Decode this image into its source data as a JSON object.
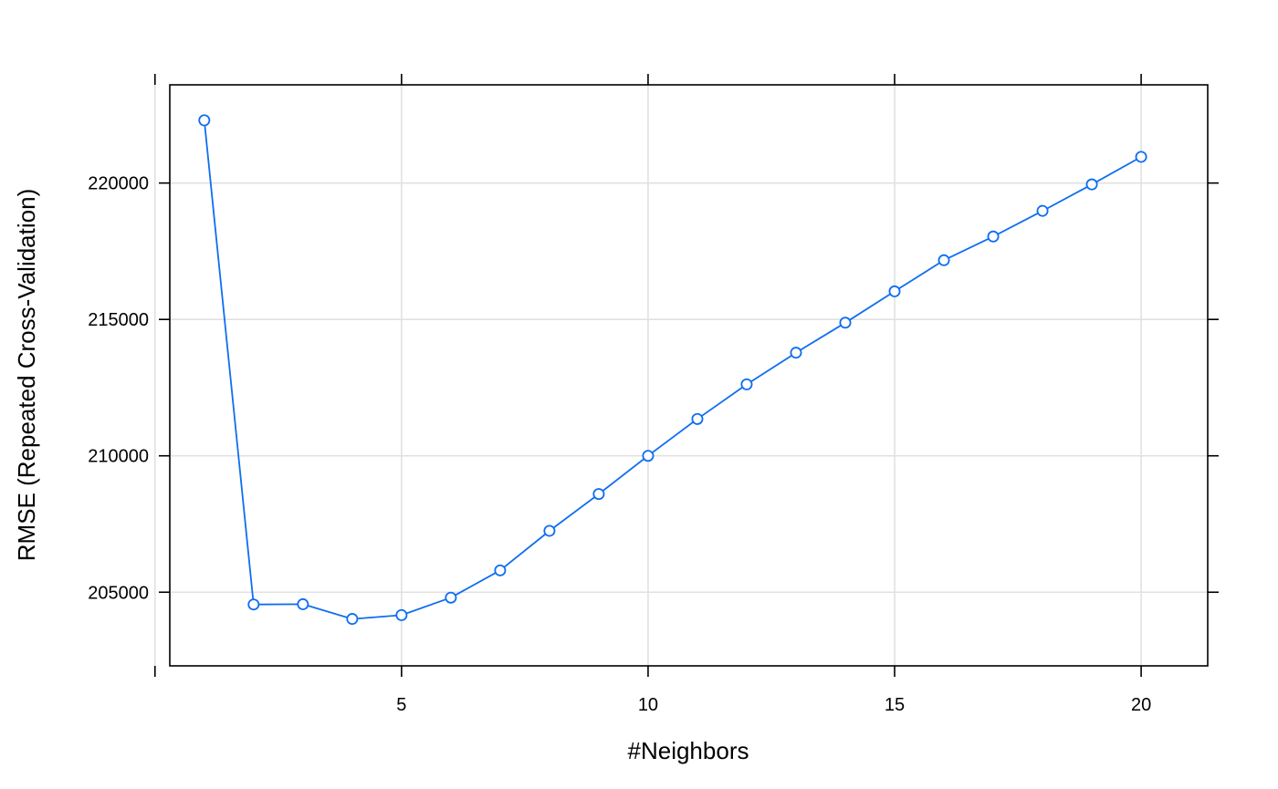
{
  "chart_data": {
    "type": "line",
    "title": "",
    "xlabel": "#Neighbors",
    "ylabel": "RMSE (Repeated Cross-Validation)",
    "x": [
      1,
      2,
      3,
      4,
      5,
      6,
      7,
      8,
      9,
      10,
      11,
      12,
      13,
      14,
      15,
      16,
      17,
      18,
      19,
      20
    ],
    "series": [
      {
        "values": [
          222300,
          204550,
          204560,
          204020,
          204160,
          204800,
          205800,
          207250,
          208600,
          210000,
          211350,
          212620,
          213780,
          214880,
          216030,
          217170,
          218040,
          218980,
          219950,
          220960
        ]
      }
    ],
    "xlim": [
      0.3,
      21.35
    ],
    "ylim": [
      202300,
      223600
    ],
    "x_ticks": [
      {
        "value": 0,
        "label": ""
      },
      {
        "value": 5,
        "label": "5"
      },
      {
        "value": 10,
        "label": "10"
      },
      {
        "value": 15,
        "label": "15"
      },
      {
        "value": 20,
        "label": "20"
      }
    ],
    "y_ticks": [
      {
        "value": 205000,
        "label": "205000"
      },
      {
        "value": 210000,
        "label": "210000"
      },
      {
        "value": 215000,
        "label": "215000"
      },
      {
        "value": 220000,
        "label": "220000"
      }
    ],
    "grid": true,
    "legend": "none",
    "colors": {
      "series": "#0f6ef0",
      "grid": "#e1e1e1",
      "axis": "#000000"
    },
    "marker": "open-circle"
  }
}
